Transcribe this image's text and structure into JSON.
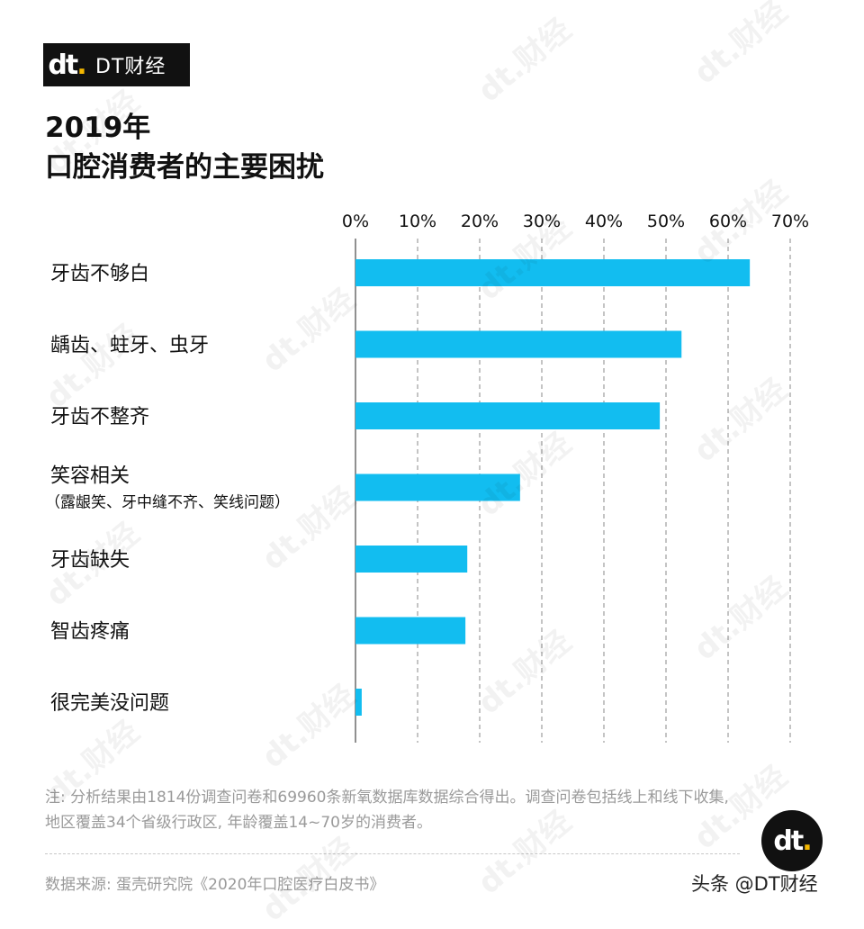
{
  "brand": {
    "logo_mark": "dt",
    "logo_text": "DT财经",
    "watermark": "dt.财经",
    "credit": "头条 @DT财经"
  },
  "title_lines": [
    "2019年",
    "口腔消费者的主要困扰"
  ],
  "note": "注: 分析结果由1814份调查问卷和69960条新氧数据库数据综合得出。调查问卷包括线上和线下收集, 地区覆盖34个省级行政区, 年龄覆盖14~70岁的消费者。",
  "source": "数据来源: 蛋壳研究院《2020年口腔医疗白皮书》",
  "chart_data": {
    "type": "bar",
    "orientation": "horizontal",
    "categories": [
      {
        "label": "牙齿不够白",
        "sub": ""
      },
      {
        "label": "龋齿、蛀牙、虫牙",
        "sub": ""
      },
      {
        "label": "牙齿不整齐",
        "sub": ""
      },
      {
        "label": "笑容相关",
        "sub": "（露龈笑、牙中缝不齐、笑线问题）"
      },
      {
        "label": "牙齿缺失",
        "sub": ""
      },
      {
        "label": "智齿疼痛",
        "sub": ""
      },
      {
        "label": "很完美没问题",
        "sub": ""
      }
    ],
    "values": [
      63.5,
      52.5,
      49,
      26.5,
      18,
      17.7,
      1
    ],
    "xlim": [
      0,
      70
    ],
    "ticks": [
      "0%",
      "10%",
      "20%",
      "30%",
      "40%",
      "50%",
      "60%",
      "70%"
    ],
    "grid": true,
    "bar_color": "#12bdf0",
    "axis_position": "top"
  }
}
